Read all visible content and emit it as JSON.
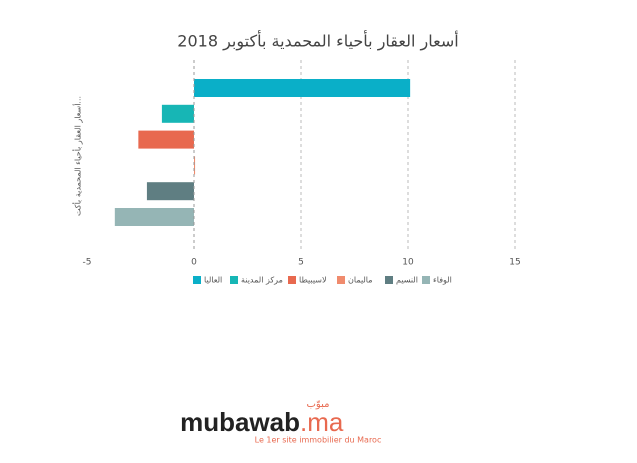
{
  "chart_data": {
    "type": "bar",
    "orientation": "horizontal",
    "title": "أسعار العقار بأحياء المحمدية بأكتوبر 2018",
    "y_label": "أسعار العقار بأحياء المحمدية بأكت...",
    "series": [
      {
        "name": "العاليا",
        "color": "#0aafc8",
        "values": [
          10.1
        ]
      },
      {
        "name": "مركز المدينة",
        "color": "#17b6b5",
        "values": [
          -1.5
        ]
      },
      {
        "name": "لاسيبيطا",
        "color": "#e8694f",
        "values": [
          -2.6
        ]
      },
      {
        "name": "ماليمان",
        "color": "#f08b6d",
        "values": [
          0.05
        ]
      },
      {
        "name": "النسيم",
        "color": "#5f7e82",
        "values": [
          -2.2
        ]
      },
      {
        "name": "الوفاء",
        "color": "#95b5b5",
        "values": [
          -3.7
        ]
      }
    ],
    "xlim": [
      -5,
      15
    ],
    "xticks": [
      -5,
      0,
      5,
      10,
      15
    ],
    "grid": true
  },
  "footer": {
    "arabic": "مبوّب",
    "brand": "mubawab",
    "domain": ".ma",
    "tagline": "Le 1er site immobilier du Maroc"
  }
}
